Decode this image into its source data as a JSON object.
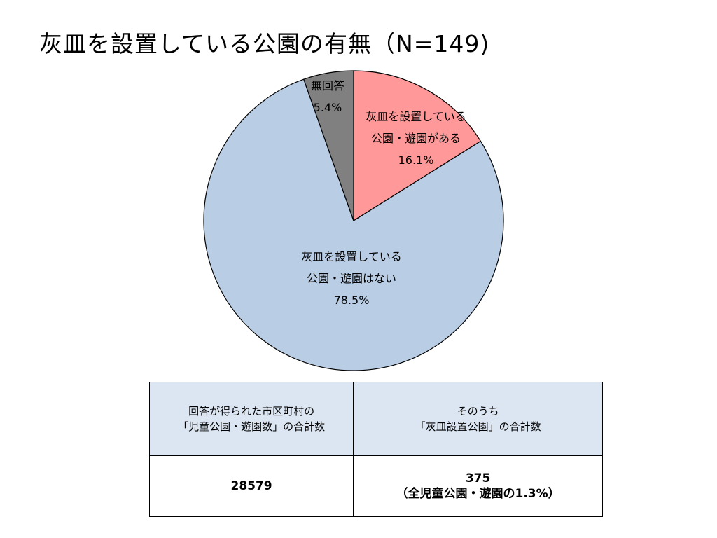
{
  "title": "灰皿を設置している公園の有無（N=149)",
  "chart_data": {
    "type": "pie",
    "slices": [
      {
        "name": "灰皿を設置している公園・遊園がある",
        "label_lines": [
          "灰皿を設置している",
          "公園・遊園がある"
        ],
        "value_label": "16.1%",
        "value": 16.1,
        "color": "#ff9999"
      },
      {
        "name": "灰皿を設置している公園・遊園はない",
        "label_lines": [
          "灰皿を設置している",
          "公園・遊園はない"
        ],
        "value_label": "78.5%",
        "value": 78.5,
        "color": "#b9cde5"
      },
      {
        "name": "無回答",
        "label_lines": [
          "無回答"
        ],
        "value_label": "5.4%",
        "value": 5.4,
        "color": "#808080"
      }
    ],
    "start": "12 o'clock",
    "direction": "clockwise",
    "legend": "none"
  },
  "table": {
    "headers": [
      [
        "回答が得られた市区町村の",
        "「児童公園・遊園数」の合計数"
      ],
      [
        "そのうち",
        "「灰皿設置公園」の合計数"
      ]
    ],
    "values": [
      [
        "28579"
      ],
      [
        "375",
        "（全児童公園・遊園の1.3%）"
      ]
    ]
  }
}
